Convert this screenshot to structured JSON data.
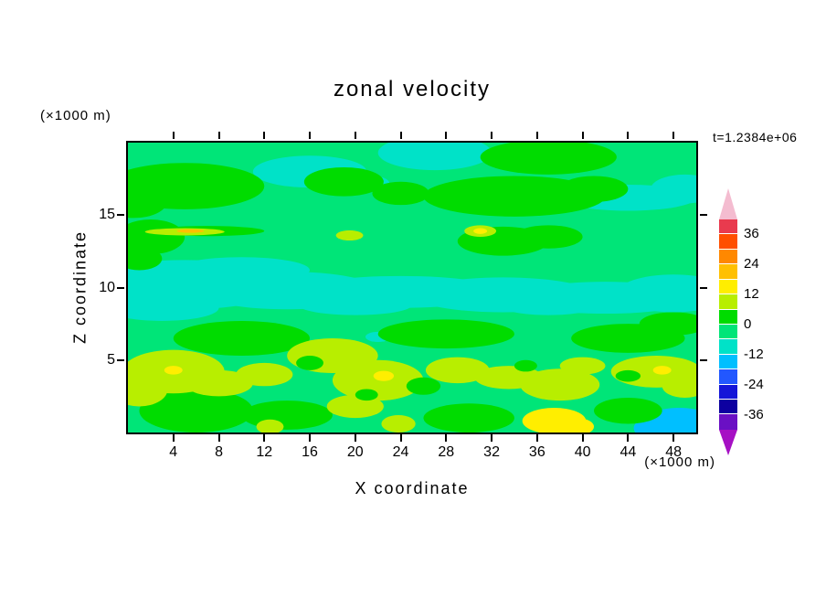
{
  "title": "zonal velocity",
  "chart_data": {
    "type": "heatmap",
    "subtype": "filled-contour",
    "title": "zonal velocity",
    "xlabel": "X coordinate",
    "ylabel": "Z coordinate",
    "x_unit": "(×1000 m)",
    "y_unit": "(×1000 m)",
    "time_annotation": "t=1.2384e+06",
    "xlim": [
      0,
      50
    ],
    "ylim": [
      0,
      20
    ],
    "x_ticks": [
      4,
      8,
      12,
      16,
      20,
      24,
      28,
      32,
      36,
      40,
      44,
      48
    ],
    "y_ticks": [
      5,
      10,
      15
    ],
    "grid": false,
    "legend_position": "right-colorbar",
    "contour_interval": 6,
    "levels": [
      -42,
      -36,
      -30,
      -24,
      -18,
      -12,
      -6,
      0,
      6,
      12,
      18,
      24,
      30,
      36,
      42
    ],
    "colorbar_tick_labels": [
      "36",
      "24",
      "12",
      "0",
      "-12",
      "-24",
      "-36"
    ],
    "palette_top_to_bottom": [
      {
        "band": "36..42",
        "color": "#e93a4e"
      },
      {
        "band": "30..36",
        "color": "#ff4f00"
      },
      {
        "band": "24..30",
        "color": "#ff8800"
      },
      {
        "band": "18..24",
        "color": "#ffc000"
      },
      {
        "band": "12..18",
        "color": "#ffee00"
      },
      {
        "band": "6..12",
        "color": "#b8ee00"
      },
      {
        "band": "0..6",
        "color": "#00dc00"
      },
      {
        "band": "-6..0",
        "color": "#00e578"
      },
      {
        "band": "-12..-6",
        "color": "#00e2c8"
      },
      {
        "band": "-18..-12",
        "color": "#00bfff"
      },
      {
        "band": "-24..-18",
        "color": "#2257ff"
      },
      {
        "band": "-30..-24",
        "color": "#1515d8"
      },
      {
        "band": "-36..-30",
        "color": "#0d00a0"
      },
      {
        "band": "-42..-36",
        "color": "#6a10c4"
      }
    ],
    "arrow_top_color": "#f4bcd0",
    "arrow_bottom_color": "#a610c4",
    "background_band": "-6..0",
    "features": [
      {
        "band": "-12..-6",
        "name": "aquamarine-mid-band",
        "ellipses": [
          [
            5,
            10.2,
            9,
            1.7
          ],
          [
            14,
            9.8,
            8,
            1.3
          ],
          [
            24,
            9.7,
            9,
            1.1
          ],
          [
            33,
            9.5,
            8,
            1.2
          ],
          [
            42,
            9.3,
            8,
            1.1
          ],
          [
            48,
            9.6,
            5,
            1.3
          ],
          [
            10,
            11.2,
            6,
            0.9
          ],
          [
            3,
            8.6,
            5,
            0.9
          ],
          [
            20,
            8.8,
            5,
            0.7
          ],
          [
            37,
            8.7,
            4,
            0.6
          ]
        ]
      },
      {
        "band": "-12..-6",
        "name": "aquamarine-upper-patches",
        "ellipses": [
          [
            16,
            18.0,
            5,
            1.1
          ],
          [
            27,
            19.3,
            5,
            1.2
          ],
          [
            44,
            16.2,
            6,
            0.9
          ],
          [
            49,
            16.8,
            3,
            1.0
          ],
          [
            21.5,
            17.2,
            1.5,
            0.5
          ],
          [
            22,
            6.6,
            1.1,
            0.35
          ],
          [
            25,
            6.3,
            0.8,
            0.3
          ]
        ]
      },
      {
        "band": "-18..-12",
        "name": "cyan-corner-patch",
        "ellipses": [
          [
            48.5,
            0.5,
            3.5,
            1.2
          ],
          [
            46.5,
            0.3,
            2.0,
            0.8
          ]
        ]
      },
      {
        "band": "0..6",
        "name": "green-patches",
        "ellipses": [
          [
            5,
            17,
            7,
            1.6
          ],
          [
            0.5,
            16,
            3,
            1.2
          ],
          [
            19,
            17.3,
            3.5,
            1.0
          ],
          [
            24,
            16.5,
            2.5,
            0.8
          ],
          [
            34,
            16.3,
            8,
            1.4
          ],
          [
            41,
            16.8,
            3,
            0.9
          ],
          [
            37,
            19,
            6,
            1.2
          ],
          [
            33,
            13.2,
            4,
            1.0
          ],
          [
            37,
            13.5,
            3,
            0.8
          ],
          [
            2,
            13.5,
            3,
            1.2
          ],
          [
            1,
            12,
            2,
            0.8
          ],
          [
            7,
            13.9,
            5,
            0.35
          ],
          [
            10,
            6.5,
            6,
            1.2
          ],
          [
            28,
            6.8,
            6,
            1.0
          ],
          [
            44,
            6.5,
            5,
            1.0
          ],
          [
            48,
            7.5,
            3,
            0.8
          ],
          [
            6,
            1.5,
            5,
            1.5
          ],
          [
            14,
            1.2,
            4,
            1.0
          ],
          [
            30,
            1,
            4,
            1.0
          ],
          [
            44,
            1.5,
            3,
            0.9
          ]
        ]
      },
      {
        "band": "6..12",
        "name": "chartreuse-patches",
        "ellipses": [
          [
            4,
            4.2,
            4.5,
            1.5
          ],
          [
            1,
            3,
            2.5,
            1.2
          ],
          [
            8,
            3.4,
            3,
            0.9
          ],
          [
            12,
            4,
            2.5,
            0.8
          ],
          [
            18,
            5.3,
            4,
            1.2
          ],
          [
            22,
            3.6,
            4,
            1.4
          ],
          [
            20,
            1.8,
            2.5,
            0.8
          ],
          [
            29,
            4.3,
            2.8,
            0.9
          ],
          [
            33.5,
            3.8,
            3,
            0.8
          ],
          [
            38,
            3.3,
            3.5,
            1.1
          ],
          [
            40,
            4.6,
            2,
            0.6
          ],
          [
            46.5,
            4.2,
            4,
            1.1
          ],
          [
            49,
            3.2,
            2,
            0.8
          ],
          [
            19.5,
            13.6,
            1.2,
            0.35
          ],
          [
            31,
            13.9,
            1.4,
            0.4
          ],
          [
            23.8,
            0.6,
            1.5,
            0.6
          ],
          [
            12.5,
            0.4,
            1.2,
            0.5
          ],
          [
            5,
            13.85,
            3.5,
            0.25
          ]
        ]
      },
      {
        "band": "12..18",
        "name": "yellow-spots",
        "ellipses": [
          [
            37.5,
            0.8,
            2.8,
            0.9
          ],
          [
            39.5,
            0.4,
            1.5,
            0.6
          ],
          [
            22.5,
            3.9,
            0.9,
            0.35
          ],
          [
            47,
            4.3,
            0.8,
            0.3
          ],
          [
            4,
            4.3,
            0.8,
            0.3
          ],
          [
            31,
            13.9,
            0.6,
            0.2
          ]
        ]
      },
      {
        "band": "0..6",
        "name": "green-islands",
        "ellipses": [
          [
            16,
            4.8,
            1.2,
            0.5
          ],
          [
            26,
            3.2,
            1.5,
            0.6
          ],
          [
            35,
            4.6,
            1.0,
            0.4
          ],
          [
            44,
            3.9,
            1.1,
            0.4
          ],
          [
            21,
            2.6,
            1.0,
            0.4
          ]
        ]
      },
      {
        "band": "18..24",
        "name": "orange-streak",
        "ellipses": [
          [
            5.5,
            13.9,
            1.2,
            0.12
          ]
        ]
      }
    ]
  }
}
